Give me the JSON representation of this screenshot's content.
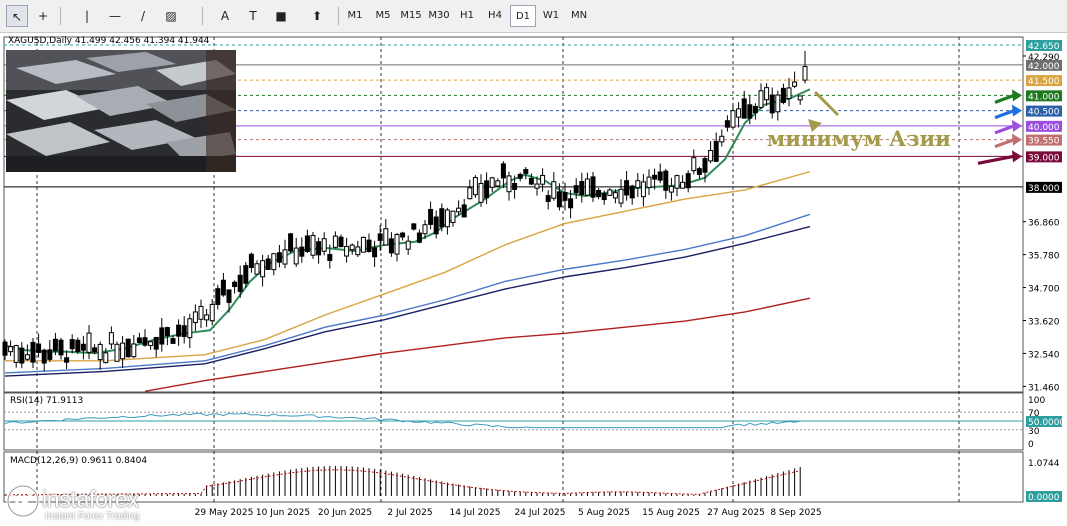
{
  "toolbar": {
    "tools": [
      {
        "name": "cursor-icon",
        "glyph": "↖"
      },
      {
        "name": "crosshair-icon",
        "glyph": "+"
      },
      {
        "name": "vertical-line-icon",
        "glyph": "|"
      },
      {
        "name": "horizontal-line-icon",
        "glyph": "—"
      },
      {
        "name": "trendline-icon",
        "glyph": "/"
      },
      {
        "name": "channel-icon",
        "glyph": "▨"
      },
      {
        "name": "text-icon",
        "glyph": "A"
      },
      {
        "name": "text-label-icon",
        "glyph": "T"
      },
      {
        "name": "rectangle-icon",
        "glyph": "■"
      },
      {
        "name": "arrows-icon",
        "glyph": "⬆"
      }
    ],
    "timeframes": [
      "M1",
      "M5",
      "M15",
      "M30",
      "H1",
      "H4",
      "D1",
      "W1",
      "MN"
    ],
    "active_timeframe": "D1"
  },
  "symbol_info": "XAGUSD,Daily  41.499 42.456 41.394 41.944",
  "annotation": "минимум Азии",
  "brand": {
    "name": "instaforex",
    "tagline": "Instant Forex Trading"
  },
  "colors": {
    "bg": "#ffffff",
    "candle": "#000000",
    "ma_fast": "#2e8b57",
    "ma_mid": "#d9a441",
    "ma_blue": "#4a78c8",
    "ma_navy": "#1b1f66",
    "ma_red": "#b02020",
    "annotation": "#a39b4a",
    "rsi": "#3c9bc0",
    "macd_hist": "#000000",
    "macd_signal": "#c00000",
    "arrow_green": "#1f7a1f",
    "arrow_blue": "#1e6fe0",
    "arrow_purple": "#9b4fe0",
    "arrow_rose": "#c07070",
    "arrow_maroon": "#7a0a3a"
  },
  "chart_data": [
    {
      "type": "candlestick",
      "title": "XAGUSD,Daily",
      "ohlc_last": {
        "open": 41.499,
        "high": 42.456,
        "low": 41.394,
        "close": 41.944
      },
      "x_tick_labels": [
        "29 May 2025",
        "10 Jun 2025",
        "20 Jun 2025",
        "2 Jul 2025",
        "14 Jul 2025",
        "24 Jul 2025",
        "5 Aug 2025",
        "15 Aug 2025",
        "27 Aug 2025",
        "8 Sep 2025"
      ],
      "y_tick_labels": [
        "42.650",
        "42.290",
        "42.000",
        "41.500",
        "41.000",
        "40.500",
        "40.000",
        "39.550",
        "39.000",
        "38.000",
        "36.860",
        "35.780",
        "34.700",
        "33.620",
        "32.540",
        "31.460"
      ],
      "ylim": [
        31.3,
        42.9
      ],
      "grid": true,
      "levels": [
        {
          "value": 42.0,
          "color": "#6f6f6f",
          "style": "solid",
          "label_bg": "#6f6f6f"
        },
        {
          "value": 41.5,
          "color": "#d9a441",
          "style": "dashed",
          "label_bg": "#d9a441"
        },
        {
          "value": 41.0,
          "color": "#1f7a1f",
          "style": "dashed",
          "label_bg": "#1f7a1f"
        },
        {
          "value": 40.5,
          "color": "#2c5fa8",
          "style": "dashed",
          "label_bg": "#2c5fa8"
        },
        {
          "value": 40.0,
          "color": "#9b4fe0",
          "style": "solid",
          "label_bg": "#9b4fe0"
        },
        {
          "value": 39.55,
          "color": "#c07070",
          "style": "dashed",
          "label_bg": "#c07070"
        },
        {
          "value": 39.0,
          "color": "#7a0a3a",
          "style": "solid",
          "label_bg": "#7a0a3a"
        },
        {
          "value": 38.0,
          "color": "#000000",
          "style": "solid",
          "label_bg": "#000000"
        },
        {
          "value": 42.65,
          "color": "#2e9f9f",
          "style": "dashed",
          "label_bg": "#2e9f9f"
        }
      ],
      "series": [
        {
          "color": "#2e8b57",
          "values": [
            [
              0,
              32.8
            ],
            [
              20,
              32.65
            ],
            [
              40,
              32.6
            ],
            [
              60,
              32.6
            ],
            [
              90,
              32.55
            ],
            [
              120,
              32.7
            ],
            [
              150,
              33.0
            ],
            [
              180,
              33.2
            ],
            [
              205,
              33.3
            ],
            [
              225,
              34.0
            ],
            [
              245,
              34.9
            ],
            [
              265,
              35.5
            ],
            [
              290,
              35.9
            ],
            [
              320,
              36.0
            ],
            [
              350,
              35.9
            ],
            [
              380,
              36.1
            ],
            [
              410,
              36.2
            ],
            [
              430,
              36.5
            ],
            [
              450,
              37.0
            ],
            [
              480,
              37.6
            ],
            [
              505,
              38.2
            ],
            [
              520,
              38.4
            ],
            [
              540,
              38.2
            ],
            [
              560,
              37.8
            ],
            [
              580,
              37.7
            ],
            [
              600,
              37.8
            ],
            [
              625,
              37.95
            ],
            [
              650,
              38.0
            ],
            [
              675,
              38.05
            ],
            [
              700,
              38.3
            ],
            [
              720,
              38.9
            ],
            [
              740,
              40.1
            ],
            [
              760,
              40.7
            ],
            [
              785,
              40.9
            ],
            [
              805,
              41.2
            ]
          ]
        },
        {
          "color": "#d9a441",
          "values": [
            [
              0,
              32.3
            ],
            [
              100,
              32.3
            ],
            [
              200,
              32.5
            ],
            [
              260,
              33.0
            ],
            [
              320,
              33.8
            ],
            [
              380,
              34.5
            ],
            [
              440,
              35.2
            ],
            [
              500,
              36.1
            ],
            [
              560,
              36.8
            ],
            [
              620,
              37.2
            ],
            [
              680,
              37.6
            ],
            [
              740,
              37.9
            ],
            [
              805,
              38.5
            ]
          ]
        },
        {
          "color": "#4a78c8",
          "values": [
            [
              0,
              31.9
            ],
            [
              100,
              32.05
            ],
            [
              200,
              32.3
            ],
            [
              260,
              32.8
            ],
            [
              320,
              33.4
            ],
            [
              380,
              33.8
            ],
            [
              440,
              34.3
            ],
            [
              500,
              34.9
            ],
            [
              560,
              35.3
            ],
            [
              620,
              35.6
            ],
            [
              680,
              35.95
            ],
            [
              740,
              36.4
            ],
            [
              805,
              37.1
            ]
          ]
        },
        {
          "color": "#1b1f66",
          "values": [
            [
              0,
              31.8
            ],
            [
              100,
              31.95
            ],
            [
              200,
              32.2
            ],
            [
              260,
              32.7
            ],
            [
              320,
              33.25
            ],
            [
              380,
              33.65
            ],
            [
              440,
              34.15
            ],
            [
              500,
              34.65
            ],
            [
              560,
              35.05
            ],
            [
              620,
              35.35
            ],
            [
              680,
              35.7
            ],
            [
              740,
              36.15
            ],
            [
              805,
              36.7
            ]
          ]
        },
        {
          "color": "#b02020",
          "values": [
            [
              140,
              31.3
            ],
            [
              200,
              31.65
            ],
            [
              260,
              31.95
            ],
            [
              320,
              32.25
            ],
            [
              380,
              32.55
            ],
            [
              440,
              32.8
            ],
            [
              500,
              33.05
            ],
            [
              560,
              33.2
            ],
            [
              620,
              33.4
            ],
            [
              680,
              33.6
            ],
            [
              740,
              33.9
            ],
            [
              805,
              34.35
            ]
          ]
        }
      ]
    },
    {
      "type": "line",
      "title": "RSI(14) 71.9113",
      "value": 71.9113,
      "y_tick_labels": [
        "100",
        "70",
        "50.0000",
        "30",
        "0"
      ],
      "ylim": [
        0,
        100
      ],
      "levels": [
        70,
        30
      ],
      "color": "#3c9bc0"
    },
    {
      "type": "bar",
      "title": "MACD(12,26,9) 0.9611 0.8404",
      "macd": 0.9611,
      "signal": 0.8404,
      "y_tick_labels": [
        "1.0744",
        "0.0000"
      ],
      "ylim": [
        0,
        1.0744
      ]
    }
  ]
}
